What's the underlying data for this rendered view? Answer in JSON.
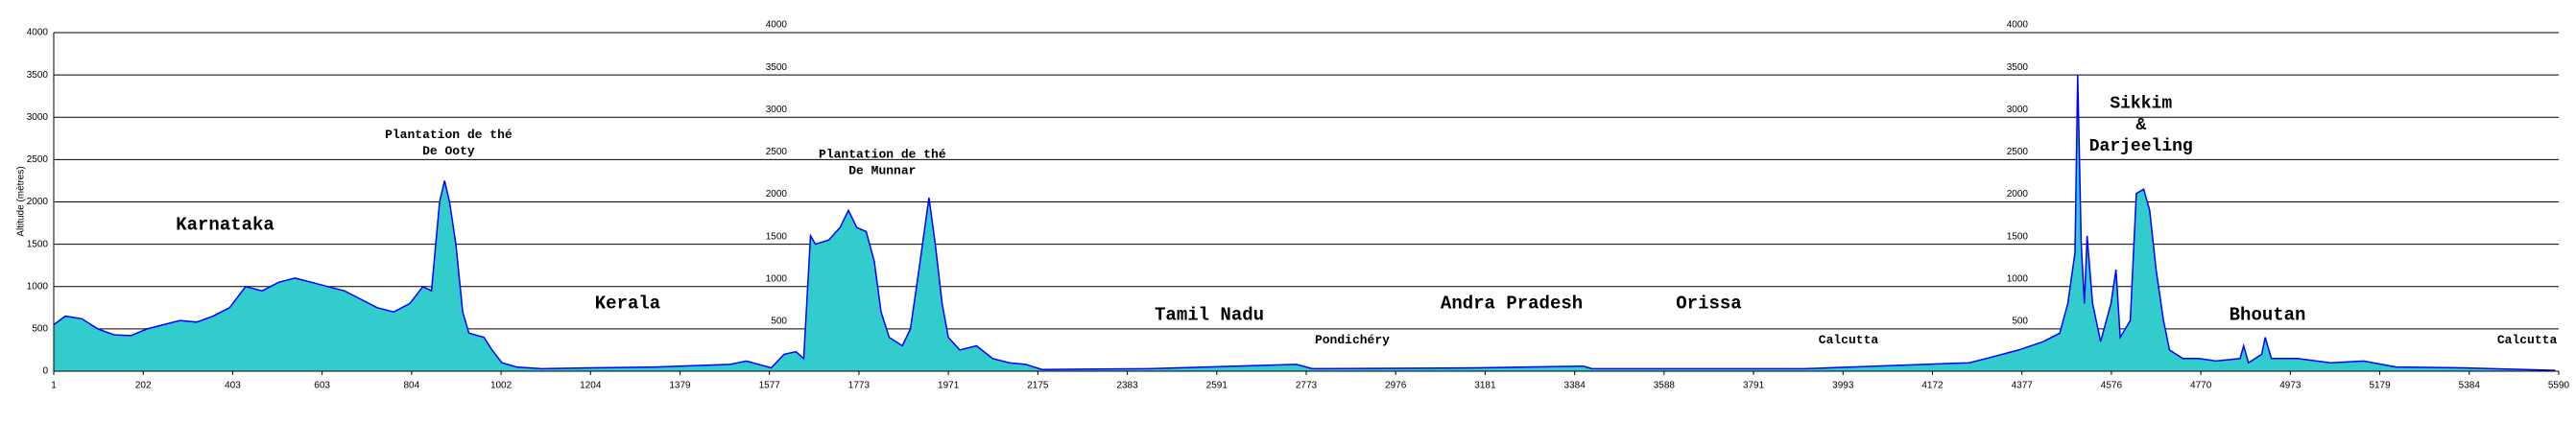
{
  "chart_data": {
    "type": "area",
    "y_axis_label": "Altitude (mètres)",
    "color": "#33cccc",
    "line_color": "#0000ff",
    "grid": true,
    "xlim": [
      1,
      5590
    ],
    "xticks": [
      1,
      202,
      403,
      603,
      804,
      1002,
      1204,
      1379,
      1577,
      1773,
      1971,
      2175,
      2383,
      2591,
      2773,
      2976,
      3181,
      3384,
      3588,
      3791,
      3993,
      4172,
      4377,
      4576,
      4770,
      4973,
      5179,
      5384,
      5590
    ],
    "ylim": [
      0,
      4000
    ],
    "yticks": [
      0,
      500,
      1000,
      1500,
      2000,
      2500,
      3000,
      3500,
      4000
    ],
    "x": [
      1,
      27,
      64,
      100,
      137,
      174,
      211,
      248,
      285,
      322,
      359,
      396,
      432,
      469,
      506,
      542,
      579,
      616,
      653,
      690,
      727,
      764,
      800,
      829,
      848,
      866,
      877,
      888,
      902,
      917,
      931,
      964,
      982,
      1004,
      1037,
      1093,
      1204,
      1332,
      1490,
      1526,
      1581,
      1609,
      1635,
      1652,
      1667,
      1678,
      1707,
      1732,
      1750,
      1768,
      1789,
      1807,
      1822,
      1840,
      1869,
      1887,
      1906,
      1928,
      1942,
      1957,
      1971,
      1997,
      2035,
      2072,
      2110,
      2147,
      2185,
      2433,
      2753,
      2787,
      3162,
      3404,
      3423,
      3908,
      4256,
      4295,
      4369,
      4425,
      4461,
      4479,
      4495,
      4501,
      4509,
      4516,
      4522,
      4534,
      4552,
      4575,
      4586,
      4595,
      4617,
      4630,
      4646,
      4659,
      4673,
      4689,
      4702,
      4731,
      4766,
      4804,
      4859,
      4867,
      4878,
      4908,
      4916,
      4930,
      4989,
      5066,
      5142,
      5216,
      5368,
      5582
    ],
    "values": [
      550,
      650,
      620,
      500,
      430,
      420,
      500,
      550,
      600,
      580,
      650,
      750,
      1000,
      950,
      1050,
      1100,
      1050,
      1000,
      950,
      850,
      750,
      700,
      800,
      1000,
      950,
      2000,
      2250,
      2000,
      1500,
      700,
      450,
      400,
      250,
      100,
      50,
      30,
      40,
      50,
      80,
      120,
      40,
      200,
      230,
      150,
      1600,
      1500,
      1550,
      1700,
      1900,
      1700,
      1650,
      1300,
      700,
      400,
      300,
      500,
      1200,
      2050,
      1500,
      800,
      400,
      250,
      300,
      150,
      100,
      80,
      20,
      30,
      80,
      30,
      40,
      60,
      30,
      30,
      100,
      150,
      250,
      350,
      450,
      800,
      1400,
      3500,
      1500,
      800,
      1600,
      800,
      350,
      800,
      1200,
      400,
      600,
      2100,
      2150,
      1900,
      1200,
      600,
      250,
      150,
      150,
      120,
      150,
      300,
      100,
      200,
      400,
      150,
      150,
      100,
      120,
      50,
      40,
      10
    ],
    "annotations": [
      "Karnataka",
      "Plantation de thé",
      "De Ooty",
      "Kerala",
      "Plantation de thé",
      "De Munnar",
      "Tamil Nadu",
      "Pondichéry",
      "Andra Pradesh",
      "Orissa",
      "Calcutta",
      "Sikkim",
      "&",
      "Darjeeling",
      "Bhoutan",
      "Calcutta"
    ]
  }
}
